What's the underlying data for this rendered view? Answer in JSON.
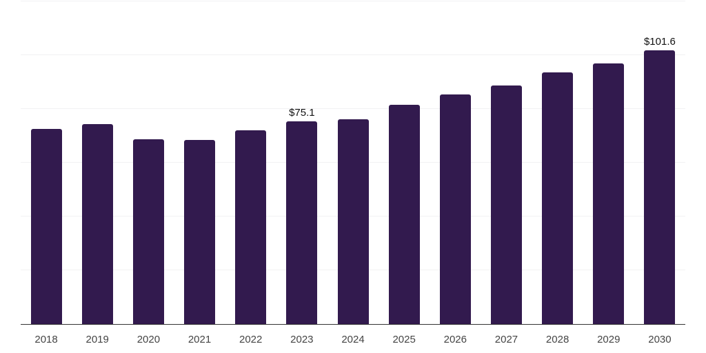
{
  "chart_data": {
    "type": "bar",
    "title": "",
    "xlabel": "",
    "ylabel": "",
    "categories": [
      "2018",
      "2019",
      "2020",
      "2021",
      "2022",
      "2023",
      "2024",
      "2025",
      "2026",
      "2027",
      "2028",
      "2029",
      "2030"
    ],
    "values": [
      72.4,
      74.3,
      68.6,
      68.2,
      71.8,
      75.1,
      76.0,
      81.4,
      85.2,
      88.5,
      93.4,
      96.7,
      101.6
    ],
    "data_labels": [
      {
        "category": "2023",
        "text": "$75.1"
      },
      {
        "category": "2030",
        "text": "$101.6"
      }
    ],
    "ylim": [
      0,
      120
    ],
    "gridline_values": [
      20,
      40,
      60,
      80,
      100,
      120
    ],
    "grid": "horizontal-only",
    "legend_position": "none",
    "y_axis_labels_visible": false,
    "colors": {
      "bar": "#321a4e",
      "axis_line": "#333333",
      "gridline": "#f1f1f3",
      "data_label_text": "#111111",
      "tick_label_text": "#444444",
      "background": "#ffffff"
    }
  }
}
